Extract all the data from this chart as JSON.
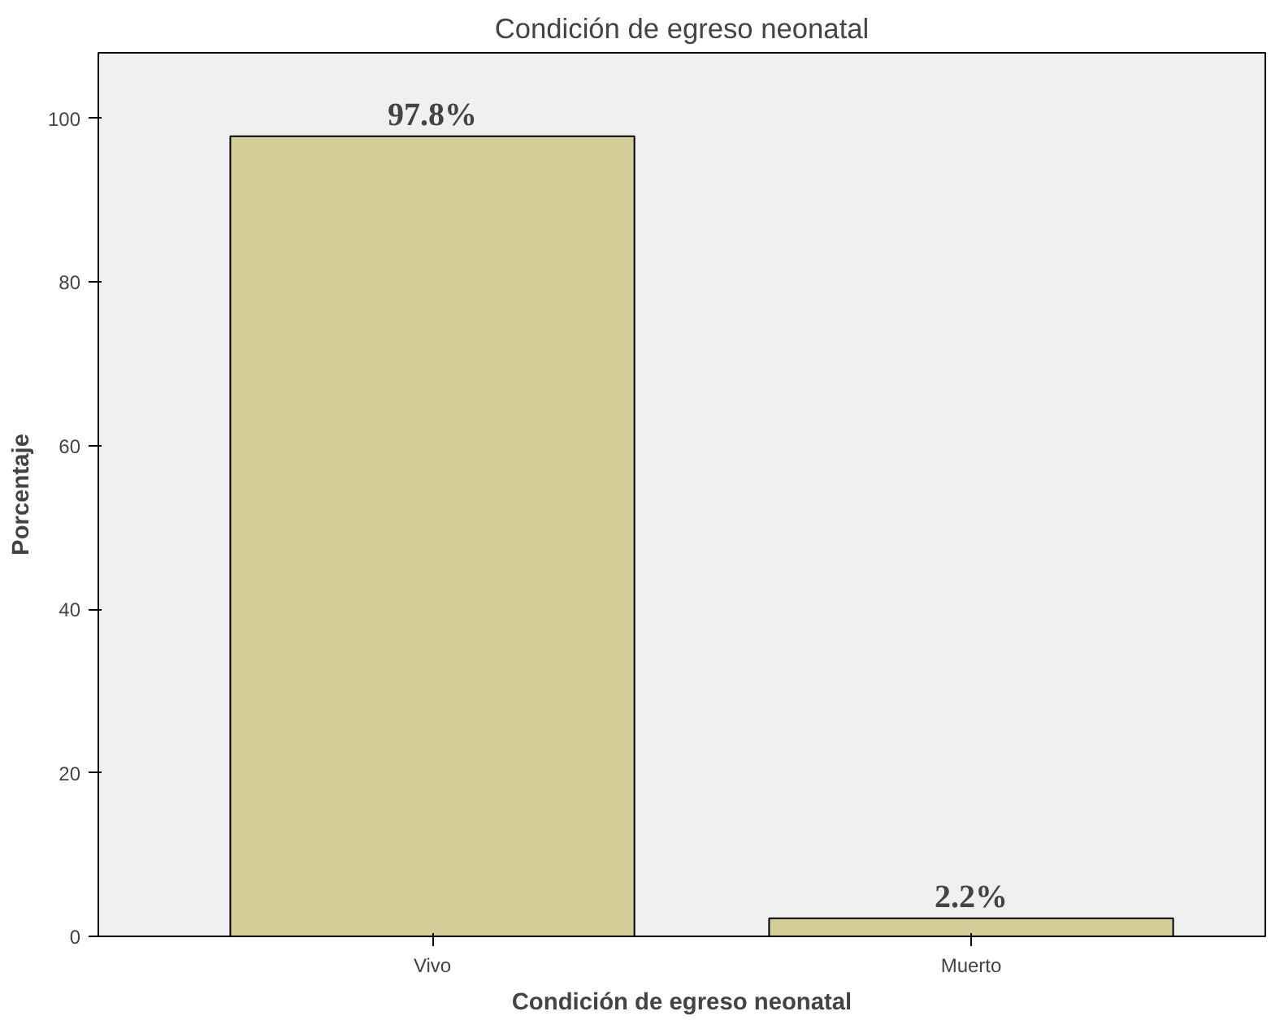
{
  "chart_data": {
    "type": "bar",
    "title": "Condición de egreso neonatal",
    "xlabel": "Condición de egreso neonatal",
    "ylabel": "Porcentaje",
    "categories": [
      "Vivo",
      "Muerto"
    ],
    "values": [
      97.8,
      2.2
    ],
    "value_labels": [
      "97.8%",
      "2.2%"
    ],
    "color": "#d3cd98",
    "ylim": [
      0,
      108
    ],
    "yticks": [
      0,
      20,
      40,
      60,
      80,
      100
    ],
    "grid": false
  }
}
